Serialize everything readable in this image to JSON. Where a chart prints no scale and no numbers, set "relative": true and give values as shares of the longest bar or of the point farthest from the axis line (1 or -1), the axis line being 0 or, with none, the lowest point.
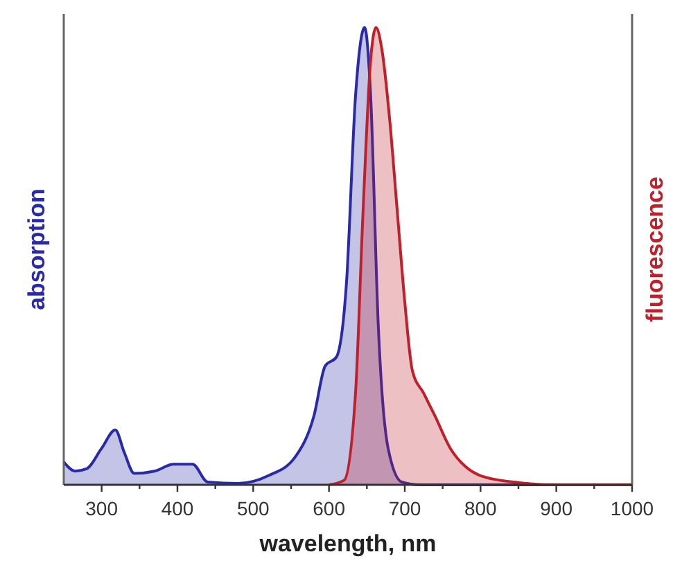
{
  "chart_data": {
    "type": "area",
    "relative": true,
    "xlabel": "wavelength, nm",
    "ylabel": "absorption",
    "y2label": "fluorescence",
    "xlim": [
      250,
      1000
    ],
    "xticks": [
      300,
      {
        "value": 350,
        "label": null
      },
      400,
      {
        "value": 450,
        "label": null
      },
      500,
      {
        "value": 550,
        "label": null
      },
      600,
      {
        "value": 650,
        "label": null
      },
      700,
      {
        "value": 750,
        "label": null
      },
      800,
      {
        "value": 850,
        "label": null
      },
      900,
      {
        "value": 950,
        "label": null
      },
      1000
    ],
    "series": [
      {
        "color": "#2a2aa8",
        "x": [
          250,
          265,
          280,
          300,
          318,
          330,
          343,
          370,
          395,
          420,
          440,
          480,
          520,
          555,
          580,
          595,
          610,
          623,
          635,
          647,
          655,
          665,
          678,
          696,
          720,
          1000
        ],
        "values": [
          0.05,
          0.03,
          0.035,
          0.08,
          0.12,
          0.07,
          0.025,
          0.03,
          0.045,
          0.045,
          0.006,
          0.003,
          0.02,
          0.06,
          0.15,
          0.26,
          0.28,
          0.44,
          0.85,
          1.0,
          0.85,
          0.35,
          0.08,
          0.006,
          0,
          0
        ]
      },
      {
        "color": "#c0202a",
        "x": [
          600,
          620,
          635,
          645,
          655,
          662,
          670,
          680,
          690,
          700,
          710,
          725,
          740,
          760,
          780,
          800,
          850,
          900,
          1000
        ],
        "values": [
          0,
          0.01,
          0.2,
          0.6,
          0.93,
          1.0,
          0.95,
          0.8,
          0.6,
          0.4,
          0.25,
          0.2,
          0.15,
          0.08,
          0.04,
          0.02,
          0.005,
          0,
          0
        ]
      }
    ]
  }
}
